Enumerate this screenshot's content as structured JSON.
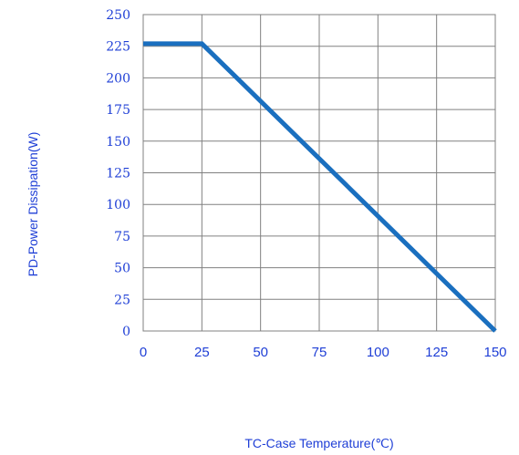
{
  "chart_data": {
    "type": "line",
    "title": "",
    "xlabel": "TC-Case Temperature(℃)",
    "ylabel": "PD-Power Dissipation(W)",
    "xlim": [
      0,
      150
    ],
    "ylim": [
      0,
      250
    ],
    "x_ticks": [
      "0",
      "25",
      "50",
      "75",
      "100",
      "125",
      "150"
    ],
    "y_ticks": [
      "0",
      "25",
      "50",
      "75",
      "100",
      "125",
      "150",
      "175",
      "200",
      "225",
      "250"
    ],
    "grid": true,
    "series": [
      {
        "x": [
          0,
          25,
          150
        ],
        "y": [
          227,
          227,
          0
        ]
      }
    ],
    "colors": {
      "line": "#1a6fbf",
      "grid": "#808080",
      "text": "#1f3fd6"
    }
  }
}
